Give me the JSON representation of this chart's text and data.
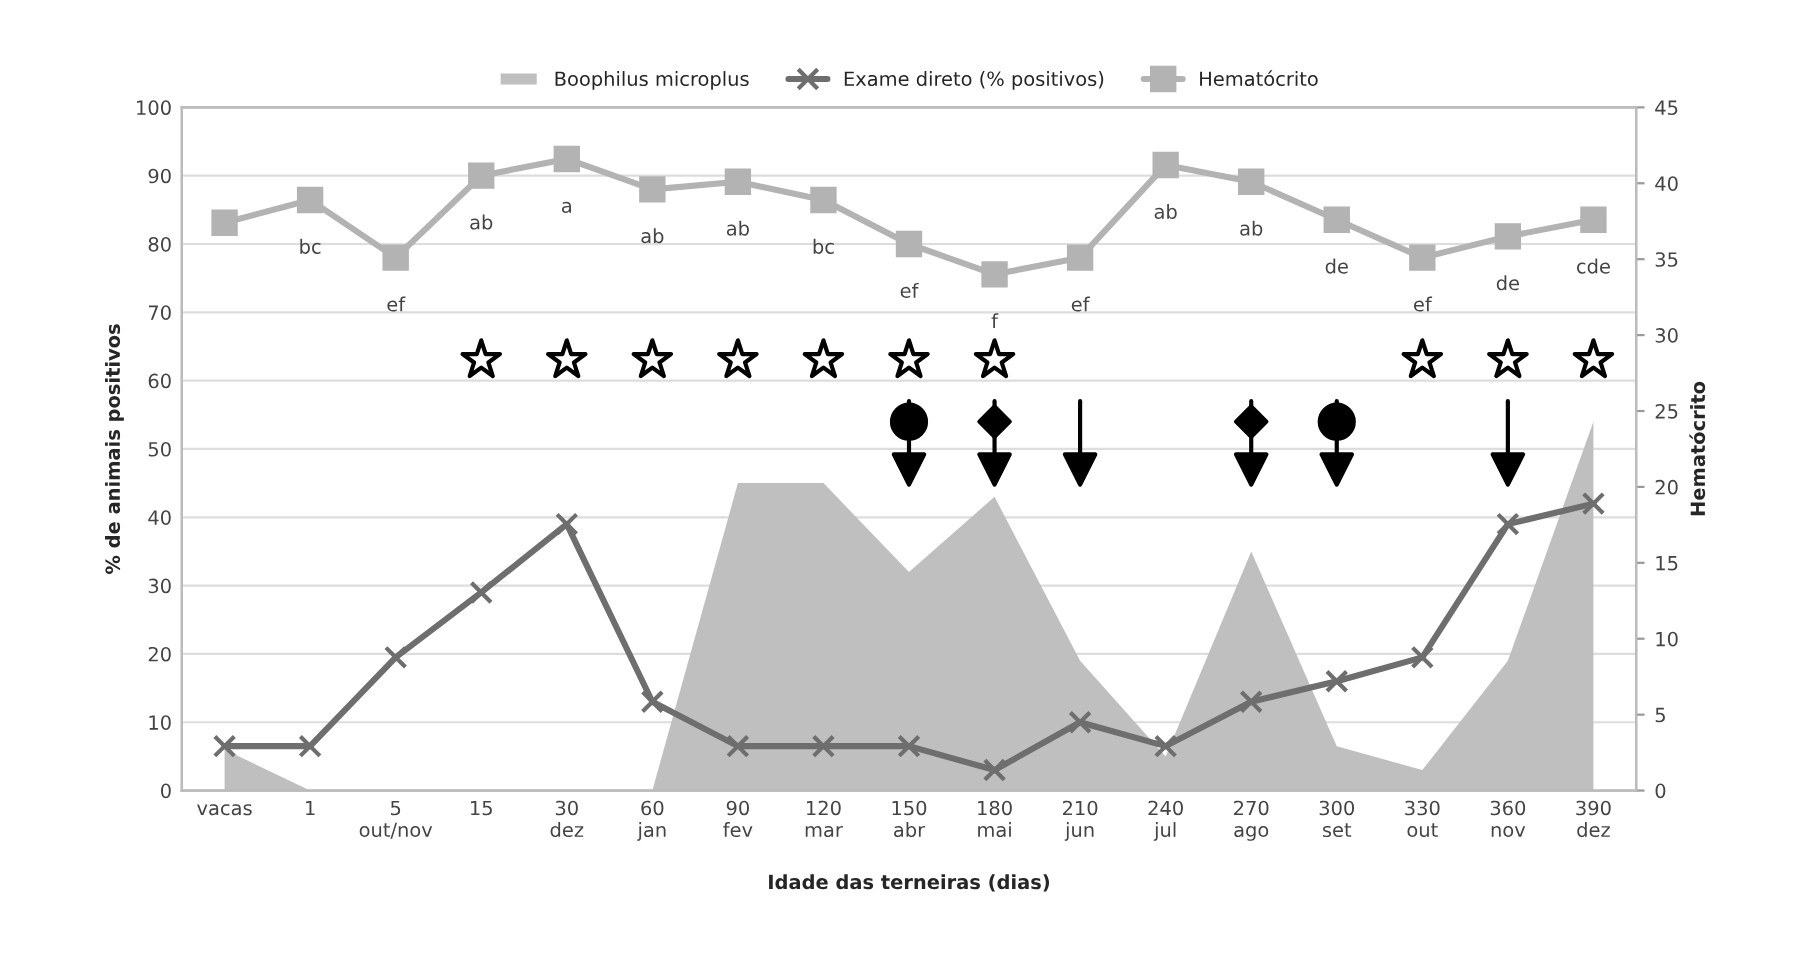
{
  "chart_data": {
    "type": "line",
    "categories": [
      "vacas",
      "1",
      "5\nout/nov",
      "15",
      "30\ndez",
      "60\njan",
      "90\nfev",
      "120\nmar",
      "150\nabr",
      "180\nmai",
      "210\njun",
      "240\njul",
      "270\nago",
      "300\nset",
      "330\nout",
      "360\nnov",
      "390\ndez"
    ],
    "xlabel": "Idade das terneiras (dias)",
    "ylabel": "% de animais positivos",
    "y2label": "Hematócrito",
    "ylim": [
      0,
      100
    ],
    "yticks": [
      0,
      10,
      20,
      30,
      40,
      50,
      60,
      70,
      80,
      90,
      100
    ],
    "y2lim": [
      0,
      45
    ],
    "y2ticks": [
      0,
      5,
      10,
      15,
      20,
      25,
      30,
      35,
      40,
      45
    ],
    "grid": "y",
    "legend": "top",
    "series": [
      {
        "type": "area",
        "name": "Boophilus microplus",
        "color": "#bfbfbf",
        "values": [
          6,
          0,
          0,
          0,
          0,
          0,
          45,
          45,
          32,
          43,
          19,
          5,
          35,
          6.5,
          3,
          19,
          54
        ]
      },
      {
        "name": "Exame direto (% positivos)",
        "color": "#6e6e6e",
        "marker": "cross",
        "values": [
          6.5,
          6.5,
          19.5,
          29,
          39,
          13,
          6.5,
          6.5,
          6.5,
          3,
          10,
          6.5,
          13,
          16,
          19.5,
          39,
          42
        ]
      },
      {
        "type": "line",
        "name": "Hematócrito",
        "axis": "y2",
        "color": "#b3b3b3",
        "marker": "square",
        "values": [
          37.4,
          38.9,
          35.1,
          40.5,
          41.6,
          39.6,
          40.1,
          38.9,
          36.0,
          34.0,
          35.1,
          41.2,
          40.1,
          37.6,
          35.1,
          36.5,
          37.6
        ],
        "value_labels": [
          null,
          "bc",
          "ef",
          "ab",
          "a",
          "ab",
          "ab",
          "bc",
          "ef",
          "f",
          "ef",
          "ab",
          "ab",
          "de",
          "ef",
          "de",
          "cde"
        ]
      },
      {
        "type": "scatter",
        "marker": "star",
        "color": "#000000",
        "values": [
          null,
          null,
          null,
          63,
          63,
          63,
          63,
          63,
          63,
          63,
          null,
          null,
          null,
          null,
          63,
          63,
          63
        ]
      },
      {
        "type": "scatter",
        "marker": "circle",
        "color": "#000000",
        "values": [
          null,
          null,
          null,
          null,
          null,
          null,
          null,
          null,
          54,
          null,
          null,
          null,
          null,
          54,
          null,
          null,
          null
        ]
      },
      {
        "type": "scatter",
        "marker": "diamond",
        "color": "#000000",
        "values": [
          null,
          null,
          null,
          null,
          null,
          null,
          null,
          null,
          null,
          54,
          null,
          null,
          54,
          null,
          null,
          null,
          null
        ]
      },
      {
        "type": "scatter",
        "marker": "triangle",
        "color": "#000000",
        "values": [
          null,
          null,
          null,
          null,
          null,
          null,
          null,
          null,
          47,
          47,
          47,
          null,
          47,
          47,
          null,
          47,
          null
        ]
      }
    ]
  }
}
